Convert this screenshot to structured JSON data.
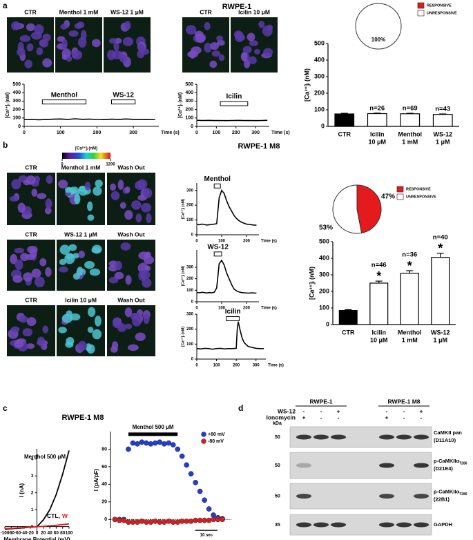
{
  "panel_labels": [
    "a",
    "b",
    "c",
    "d"
  ],
  "titles": {
    "a": "RWPE-1",
    "b": "RWPE-1 M8",
    "c": "RWPE-1 M8"
  },
  "image_labels": [
    [
      "CTR",
      "Menthol 1 mM",
      "WS-12  1 μM"
    ],
    [
      "CTR",
      "Icilin 10 μM"
    ],
    [
      "CTR",
      "Menthol 1 mM",
      "Wash Out"
    ],
    [
      "CTR",
      "WS-12 1 μM",
      "Wash Out"
    ],
    [
      "CTR",
      "Icilin 10 μM",
      "Wash Out"
    ]
  ],
  "colorbar": {
    "label": "[Ca²⁺]ᵢ (nM)",
    "min": 0,
    "max": 1200
  },
  "blot": {
    "groups": [
      "RWPE-1",
      "RWPE-1 M8"
    ],
    "rows": [
      {
        "label": "WS-12",
        "signs": [
          "-",
          "-",
          "+",
          "-",
          "-",
          "+"
        ]
      },
      {
        "label": "Ionomycin",
        "signs": [
          "+",
          "-",
          "-",
          "+",
          "-",
          "-"
        ]
      }
    ],
    "kda_label": "kDa",
    "bands": [
      {
        "kda": 50,
        "name": "CaMKII pan",
        "clone": "(D11A10)"
      },
      {
        "kda": 50,
        "name": "p-CaMKIIα",
        "sub": "T286",
        "clone": "(D21E4)"
      },
      {
        "kda": 50,
        "name": "p-CaMKIIα",
        "sub": "T286",
        "clone": "(22B1)"
      },
      {
        "kda": 35,
        "name": "GAPDH"
      }
    ]
  },
  "chart_data": [
    {
      "type": "line",
      "ylabel": "[Ca²⁺]ᵢ (nM)",
      "xlabel": "Time (s)",
      "color": "#000000",
      "x": [
        0,
        20,
        40,
        60,
        80,
        100,
        120,
        140,
        160,
        180,
        200,
        220,
        240,
        260,
        280,
        300,
        320,
        340,
        360
      ],
      "values": [
        80,
        82,
        79,
        81,
        85,
        88,
        83,
        90,
        84,
        86,
        82,
        80,
        85,
        83,
        88,
        84,
        81,
        80,
        82
      ],
      "xlim": [
        0,
        370
      ],
      "ylim": [
        0,
        500
      ],
      "xticks": [
        0,
        100,
        200,
        300
      ],
      "yticks": [
        0,
        100,
        200,
        300,
        400,
        500
      ],
      "annotations": [
        {
          "text": "Menthol",
          "start": 50,
          "end": 170,
          "level": 290
        },
        {
          "text": "WS-12",
          "start": 240,
          "end": 305,
          "level": 290
        }
      ]
    },
    {
      "type": "line",
      "ylabel": "[Ca²⁺]ᵢ (nM)",
      "xlabel": "Time (s)",
      "color": "#000000",
      "x": [
        0,
        30,
        60,
        90,
        120,
        150,
        180,
        210,
        240,
        270,
        300,
        330,
        360
      ],
      "values": [
        72,
        70,
        71,
        69,
        70,
        68,
        70,
        71,
        69,
        70,
        68,
        70,
        72
      ],
      "xlim": [
        0,
        370
      ],
      "ylim": [
        0,
        500
      ],
      "xticks": [
        0,
        100,
        200,
        300
      ],
      "yticks": [
        0,
        100,
        200,
        300,
        400,
        500
      ],
      "annotations": [
        {
          "text": "Icilin",
          "start": 120,
          "end": 260,
          "level": 270
        }
      ]
    },
    {
      "type": "bar",
      "ylabel": "[Ca²⁺]ᵢ (nM)",
      "categories": [
        [
          "CTR"
        ],
        [
          "Icilin",
          "10 μM"
        ],
        [
          "Menthol",
          "1 mM"
        ],
        [
          "WS-12",
          "1 μM"
        ]
      ],
      "values": [
        75,
        77,
        76,
        72
      ],
      "errors": [
        4,
        3,
        3,
        3
      ],
      "n_labels": [
        null,
        "n=26",
        "n=69",
        "n=43"
      ],
      "colors": [
        "#000000",
        "#ffffff",
        "#ffffff",
        "#ffffff"
      ],
      "ylim": [
        0,
        500
      ],
      "yticks": [
        0,
        100,
        200,
        300,
        400,
        500
      ]
    },
    {
      "type": "pie",
      "categories": [
        "RESPONSIVE",
        "UNRESPONSIVE"
      ],
      "values": [
        0,
        100
      ],
      "value_labels": [
        "0%",
        "100%"
      ],
      "colors": [
        "#e41a1c",
        "#ffffff"
      ],
      "legend": true
    },
    {
      "type": "line",
      "ylabel": "[Ca²⁺]ᵢ (nM)",
      "xlabel": "Time (s)",
      "color": "#000000",
      "x": [
        0,
        10,
        20,
        30,
        40,
        50,
        60,
        70,
        80,
        90,
        100,
        110,
        120,
        130,
        140,
        150,
        160,
        170,
        180,
        190,
        200,
        210,
        220,
        230,
        240
      ],
      "values": [
        70,
        68,
        72,
        70,
        66,
        68,
        70,
        72,
        75,
        250,
        300,
        280,
        230,
        190,
        160,
        130,
        110,
        95,
        85,
        78,
        72,
        70,
        68,
        66,
        65
      ],
      "xlim": [
        0,
        250
      ],
      "ylim": [
        0,
        350
      ],
      "xticks": [
        0,
        100,
        200
      ],
      "yticks": [
        0,
        100,
        200,
        300
      ],
      "annotations": [
        {
          "text": "Menthol",
          "start": 70,
          "end": 95,
          "level": 330
        }
      ]
    },
    {
      "type": "line",
      "ylabel": "[Ca²⁺]ᵢ (nM)",
      "xlabel": "Time (s)",
      "color": "#000000",
      "x": [
        0,
        10,
        20,
        30,
        40,
        50,
        60,
        70,
        80,
        90,
        100,
        110,
        120,
        130,
        140,
        150,
        160,
        170,
        180,
        190,
        200,
        210,
        220,
        230,
        240
      ],
      "values": [
        80,
        78,
        82,
        80,
        76,
        80,
        78,
        82,
        120,
        330,
        360,
        320,
        250,
        200,
        150,
        110,
        95,
        85,
        80,
        78,
        76,
        75,
        78,
        76,
        75
      ],
      "xlim": [
        0,
        250
      ],
      "ylim": [
        0,
        450
      ],
      "xticks": [
        0,
        100,
        200
      ],
      "yticks": [
        0,
        100,
        200,
        300
      ],
      "annotations": [
        {
          "text": "WS-12",
          "start": 70,
          "end": 100,
          "level": 415
        }
      ]
    },
    {
      "type": "line",
      "ylabel": "[Ca²⁺]ᵢ (nM)",
      "xlabel": "Time (s)",
      "color": "#000000",
      "x": [
        0,
        20,
        40,
        60,
        80,
        100,
        120,
        140,
        160,
        180,
        200,
        205,
        210,
        220,
        230,
        240,
        260,
        280,
        300,
        320,
        340
      ],
      "values": [
        70,
        68,
        72,
        70,
        66,
        70,
        72,
        68,
        70,
        70,
        72,
        200,
        250,
        190,
        140,
        110,
        85,
        78,
        72,
        70,
        70
      ],
      "xlim": [
        0,
        350
      ],
      "ylim": [
        0,
        300
      ],
      "xticks": [
        0,
        100,
        200,
        300
      ],
      "yticks": [
        0,
        100,
        200,
        300
      ],
      "annotations": [
        {
          "text": "Icilin",
          "start": 150,
          "end": 215,
          "level": 270
        }
      ]
    },
    {
      "type": "bar",
      "ylabel": "[Ca²⁺]ᵢ (nM)",
      "categories": [
        [
          "CTR"
        ],
        [
          "Icilin",
          "10 μM"
        ],
        [
          "Menthol",
          "1 mM"
        ],
        [
          "WS-12",
          "1 μM"
        ]
      ],
      "values": [
        85,
        250,
        310,
        405
      ],
      "errors": [
        5,
        12,
        15,
        25
      ],
      "n_labels": [
        null,
        "n=46",
        "n=36",
        "n=40"
      ],
      "stars": [
        null,
        "*",
        "*",
        "*"
      ],
      "colors": [
        "#000000",
        "#ffffff",
        "#ffffff",
        "#ffffff"
      ],
      "ylim": [
        0,
        500
      ],
      "yticks": [
        0,
        100,
        200,
        300,
        400,
        500
      ]
    },
    {
      "type": "pie",
      "categories": [
        "RESPONSIVE",
        "UNRESPONSIVE"
      ],
      "values": [
        47,
        53
      ],
      "value_labels": [
        "47%",
        "53%"
      ],
      "colors": [
        "#e41a1c",
        "#ffffff"
      ],
      "legend": true
    },
    {
      "type": "line",
      "ylabel": "I (nA)",
      "xlabel": "Membrane Potential (mV)",
      "note": "CTL,",
      "x": [
        -100,
        -80,
        -60,
        -40,
        -20,
        0,
        20,
        40,
        60,
        80,
        100
      ],
      "series": [
        {
          "name": "Menthol 500 μM",
          "color": "#000000",
          "values": [
            -0.15,
            -0.12,
            -0.1,
            -0.07,
            -0.03,
            0,
            0.4,
            1.0,
            1.9,
            3.1,
            4.5
          ]
        },
        {
          "name": "W",
          "color": "#e41a1c",
          "values": [
            -0.12,
            -0.1,
            -0.08,
            -0.05,
            -0.02,
            0,
            0.02,
            0.05,
            0.08,
            0.12,
            0.16
          ]
        }
      ],
      "xlim": [
        -100,
        100
      ],
      "ylim": [
        -0.3,
        4.6
      ],
      "xticks": [
        -100,
        -80,
        -60,
        -40,
        -20,
        0,
        20,
        40,
        60,
        80,
        100
      ],
      "yticks": [
        0,
        1,
        2,
        3,
        4
      ]
    },
    {
      "type": "scatter",
      "ylabel": "I (pA/pF)",
      "x": [
        0,
        2,
        4,
        6,
        8,
        10,
        12,
        14,
        16,
        18,
        20,
        22,
        24,
        26,
        28,
        30,
        32,
        34,
        36,
        38,
        40,
        42,
        44,
        46,
        48
      ],
      "series": [
        {
          "name": "+80 mV",
          "color": "#1f3fd6",
          "values": [
            0,
            0,
            0,
            80,
            87,
            86,
            88,
            87,
            86,
            87,
            88,
            86,
            87,
            85,
            80,
            72,
            62,
            52,
            42,
            32,
            22,
            12,
            5,
            2,
            1
          ]
        },
        {
          "name": "-80 mV",
          "color": "#d62020",
          "values": [
            0,
            -1,
            -1,
            -3,
            -3,
            -3,
            -2,
            -3,
            -3,
            -2,
            -3,
            -3,
            -2,
            -3,
            -3,
            -2,
            -2,
            -2,
            -1,
            -1,
            -1,
            -1,
            0,
            0,
            0
          ]
        }
      ],
      "xlim": [
        -2,
        52
      ],
      "ylim": [
        -10,
        100
      ],
      "yticks": [
        0,
        20,
        40,
        60,
        80
      ],
      "annotations": [
        {
          "text": "Menthol 500 μM",
          "start": 6,
          "end": 28,
          "level": 97
        }
      ],
      "scale_bar": {
        "label": "10 sec",
        "length": 10
      }
    }
  ]
}
